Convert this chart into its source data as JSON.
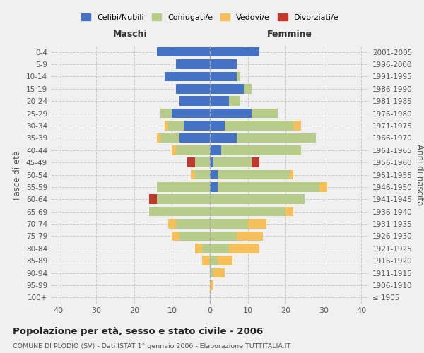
{
  "age_groups": [
    "0-4",
    "5-9",
    "10-14",
    "15-19",
    "20-24",
    "25-29",
    "30-34",
    "35-39",
    "40-44",
    "45-49",
    "50-54",
    "55-59",
    "60-64",
    "65-69",
    "70-74",
    "75-79",
    "80-84",
    "85-89",
    "90-94",
    "95-99",
    "100+"
  ],
  "birth_years": [
    "2001-2005",
    "1996-2000",
    "1991-1995",
    "1986-1990",
    "1981-1985",
    "1976-1980",
    "1971-1975",
    "1966-1970",
    "1961-1965",
    "1956-1960",
    "1951-1955",
    "1946-1950",
    "1941-1945",
    "1936-1940",
    "1931-1935",
    "1926-1930",
    "1921-1925",
    "1916-1920",
    "1911-1915",
    "1906-1910",
    "≤ 1905"
  ],
  "male_celibi": [
    14,
    9,
    12,
    9,
    8,
    10,
    7,
    8,
    0,
    0,
    0,
    0,
    0,
    0,
    0,
    0,
    0,
    0,
    0,
    0,
    0
  ],
  "male_coniugati": [
    0,
    0,
    0,
    0,
    0,
    3,
    4,
    5,
    9,
    4,
    4,
    14,
    14,
    16,
    9,
    8,
    2,
    0,
    0,
    0,
    0
  ],
  "male_vedovi": [
    0,
    0,
    0,
    0,
    0,
    0,
    1,
    1,
    1,
    0,
    1,
    0,
    0,
    0,
    2,
    2,
    2,
    2,
    0,
    0,
    0
  ],
  "male_divorziati": [
    0,
    0,
    0,
    0,
    0,
    0,
    0,
    0,
    0,
    2,
    0,
    0,
    2,
    0,
    0,
    0,
    0,
    0,
    0,
    0,
    0
  ],
  "female_celibi": [
    13,
    7,
    7,
    9,
    5,
    11,
    4,
    7,
    3,
    1,
    2,
    2,
    0,
    0,
    0,
    0,
    0,
    0,
    0,
    0,
    0
  ],
  "female_coniugati": [
    0,
    0,
    1,
    2,
    3,
    7,
    18,
    21,
    21,
    10,
    19,
    27,
    25,
    20,
    10,
    7,
    5,
    2,
    1,
    0,
    0
  ],
  "female_vedovi": [
    0,
    0,
    0,
    0,
    0,
    0,
    2,
    0,
    0,
    0,
    1,
    2,
    0,
    2,
    5,
    7,
    8,
    4,
    3,
    1,
    0
  ],
  "female_divorziati": [
    0,
    0,
    0,
    0,
    0,
    0,
    0,
    0,
    0,
    2,
    0,
    0,
    0,
    0,
    0,
    0,
    0,
    0,
    0,
    0,
    0
  ],
  "color_celibi": "#4472c4",
  "color_coniugati": "#b8cc8a",
  "color_vedovi": "#f5c05a",
  "color_divorziati": "#c0392b",
  "xlim": 42,
  "title": "Popolazione per età, sesso e stato civile - 2006",
  "subtitle": "COMUNE DI PLODIO (SV) - Dati ISTAT 1° gennaio 2006 - Elaborazione TUTTITALIA.IT",
  "ylabel_left": "Fasce di età",
  "ylabel_right": "Anni di nascita",
  "xlabel_left": "Maschi",
  "xlabel_right": "Femmine",
  "bg_color": "#f0f0f0"
}
